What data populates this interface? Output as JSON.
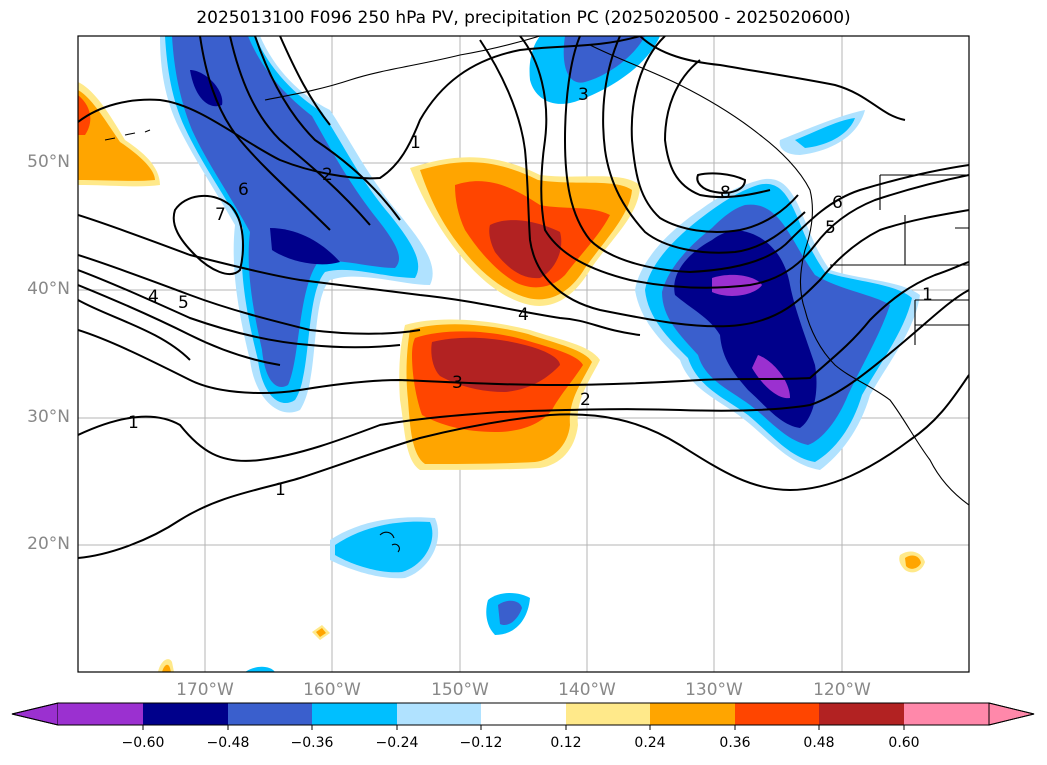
{
  "title": "2025013100 F096 250 hPa PV, precipitation PC (2025020500 - 2025020600)",
  "map": {
    "lat_labels": [
      "50°N",
      "40°N",
      "30°N",
      "20°N"
    ],
    "lon_labels": [
      "170°W",
      "160°W",
      "150°W",
      "140°W",
      "130°W",
      "120°W"
    ]
  },
  "colorbar": {
    "ticks": [
      "−0.60",
      "−0.48",
      "−0.36",
      "−0.24",
      "−0.12",
      "0.12",
      "0.24",
      "0.36",
      "0.48",
      "0.60"
    ],
    "colors": [
      "#9b30d0",
      "#00008b",
      "#3a5fcd",
      "#00bfff",
      "#b0e2ff",
      "#ffffff",
      "#ffe98a",
      "#ffa500",
      "#ff4500",
      "#b22222",
      "#ff88aa"
    ]
  },
  "pv_contour_labels": [
    "1",
    "1",
    "1",
    "2",
    "3",
    "4",
    "4",
    "5",
    "5",
    "6",
    "6",
    "7",
    "8",
    "1",
    "2",
    "3"
  ]
}
